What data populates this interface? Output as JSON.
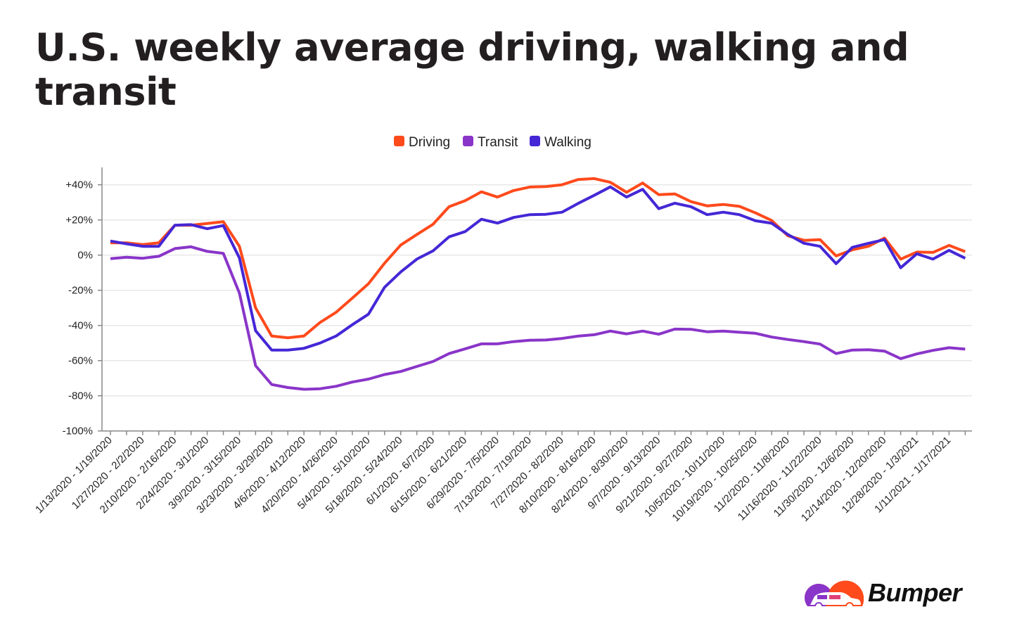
{
  "chart_data": {
    "type": "line",
    "title": "U.S. weekly average driving, walking and transit",
    "legend_position": "top-center",
    "grid": true,
    "ylim": [
      -100,
      40
    ],
    "y_ticks": [
      40,
      20,
      0,
      -20,
      -40,
      -60,
      -80,
      -100
    ],
    "y_tick_labels": [
      "+40%",
      "+20%",
      "0%",
      "-20%",
      "-40%",
      "-60%",
      "-80%",
      "-100%"
    ],
    "x_tick_labels": [
      "1/13/2020 - 1/19/2020",
      "1/27/2020 - 2/2/2020",
      "2/10/2020 - 2/16/2020",
      "2/24/2020 - 3/1/2020",
      "3/9/2020 - 3/15/2020",
      "3/23/2020 - 3/29/2020",
      "4/6/2020 - 4/12/2020",
      "4/20/2020 - 4/26/2020",
      "5/4/2020 - 5/10/2020",
      "5/18/2020 - 5/24/2020",
      "6/1/2020 - 6/7/2020",
      "6/15/2020 - 6/21/2020",
      "6/29/2020 - 7/5/2020",
      "7/13/2020 - 7/19/2020",
      "7/27/2020 - 8/2/2020",
      "8/10/2020 - 8/16/2020",
      "8/24/2020 - 8/30/2020",
      "9/7/2020 - 9/13/2020",
      "9/21/2020 - 9/27/2020",
      "10/5/2020 - 10/11/2020",
      "10/19/2020 - 10/25/2020",
      "11/2/2020 - 11/8/2020",
      "11/16/2020 - 11/22/2020",
      "11/30/2020 - 12/6/2020",
      "12/14/2020 - 12/20/2020",
      "12/28/2020 - 1/3/2021",
      "1/11/2021 - 1/17/2021"
    ],
    "series": [
      {
        "name": "Driving",
        "color": "#ff4a1c",
        "values": [
          7,
          7,
          6,
          7,
          17,
          17,
          18,
          19,
          5,
          -30,
          -46,
          -47,
          -46,
          -38.3,
          -32.5,
          -24.5,
          -16.3,
          -4.6,
          5.7,
          11.7,
          17.5,
          27.5,
          31,
          36,
          33,
          36.7,
          38.7,
          39,
          40,
          43,
          43.5,
          41.4,
          35.7,
          41,
          34.4,
          34.8,
          30.4,
          28,
          28.8,
          27.7,
          24,
          19.7,
          11,
          8.4,
          8.8,
          -0.5,
          3,
          5,
          9.7,
          -2.3,
          1.7,
          1.5,
          5.5,
          2
        ]
      },
      {
        "name": "Transit",
        "color": "#8a35c9",
        "values": [
          -2,
          -1.2,
          -1.8,
          -0.7,
          3.7,
          4.7,
          2.1,
          1,
          -21.6,
          -62.9,
          -73.6,
          -75.3,
          -76.3,
          -76,
          -74.6,
          -72.2,
          -70.5,
          -67.9,
          -66.2,
          -63.3,
          -60.5,
          -56,
          -53.3,
          -50.5,
          -50.5,
          -49.2,
          -48.4,
          -48.3,
          -47.4,
          -46.1,
          -45.3,
          -43.2,
          -44.8,
          -43.2,
          -45,
          -42.1,
          -42.2,
          -43.6,
          -43.2,
          -43.9,
          -44.5,
          -46.6,
          -48,
          -49.2,
          -50.6,
          -56,
          -54,
          -53.8,
          -54.6,
          -58.9,
          -56.2,
          -54.2,
          -52.7,
          -53.5
        ]
      },
      {
        "name": "Walking",
        "color": "#4527d6",
        "values": [
          8,
          6.4,
          5,
          5,
          17,
          17.3,
          15,
          16.8,
          -1.6,
          -43,
          -54,
          -54,
          -53,
          -50,
          -46,
          -39.6,
          -33.6,
          -18.3,
          -9.6,
          -2.3,
          2.4,
          10.4,
          13.4,
          20.4,
          18.2,
          21.4,
          23,
          23.2,
          24.4,
          29.4,
          34,
          38.8,
          33,
          37.4,
          26.4,
          29.5,
          27.5,
          23,
          24.4,
          23,
          19.5,
          18.1,
          11.7,
          6.7,
          5,
          -4.9,
          4.4,
          6.7,
          8.8,
          -7.2,
          0.7,
          -2.3,
          2.7,
          -1.8
        ]
      }
    ]
  },
  "logo": {
    "text": "Bumper"
  }
}
